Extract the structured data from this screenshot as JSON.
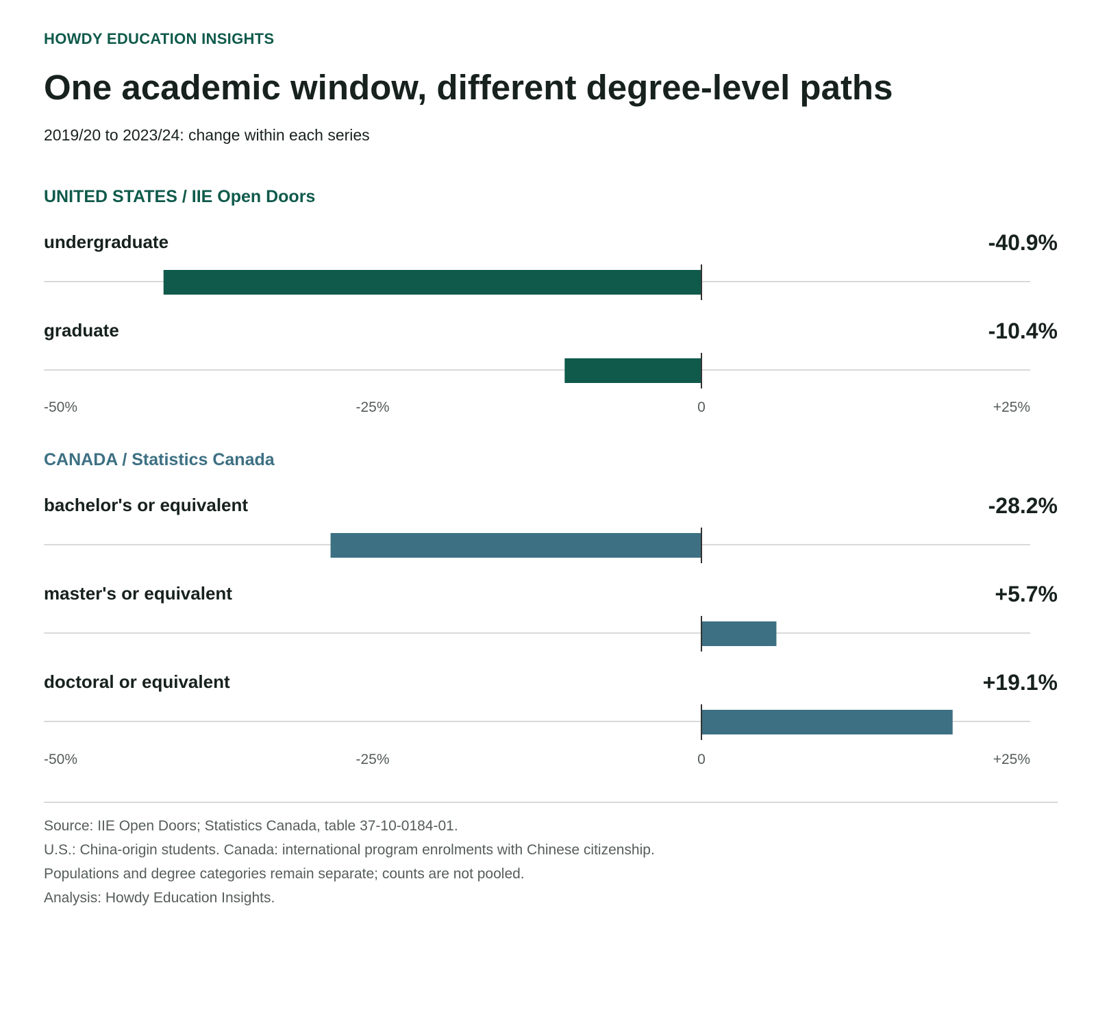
{
  "header": {
    "kicker": "HOWDY EDUCATION INSIGHTS",
    "title": "One academic window, different degree-level paths",
    "subtitle": "2019/20 to 2023/24: change within each series"
  },
  "colors": {
    "us": "#0f5a4b",
    "canada": "#3d7083",
    "baseline": "#d9d9d9",
    "zero_line": "#333333"
  },
  "chart_data": [
    {
      "type": "bar",
      "orientation": "horizontal",
      "section_title": "UNITED STATES / IIE Open Doors",
      "color": "#0f5a4b",
      "categories": [
        "undergraduate",
        "graduate"
      ],
      "values": [
        -40.9,
        -10.4
      ],
      "value_labels": [
        "-40.9%",
        "-10.4%"
      ],
      "xlim": [
        -50,
        25
      ],
      "ticks": [
        "-50%",
        "-25%",
        "0",
        "+25%"
      ],
      "tick_values": [
        -50,
        -25,
        0,
        25
      ],
      "grid": false
    },
    {
      "type": "bar",
      "orientation": "horizontal",
      "section_title": "CANADA / Statistics Canada",
      "color": "#3d7083",
      "categories": [
        "bachelor's or equivalent",
        "master's or equivalent",
        "doctoral or equivalent"
      ],
      "values": [
        -28.2,
        5.7,
        19.1
      ],
      "value_labels": [
        "-28.2%",
        "+5.7%",
        "+19.1%"
      ],
      "xlim": [
        -50,
        25
      ],
      "ticks": [
        "-50%",
        "-25%",
        "0",
        "+25%"
      ],
      "tick_values": [
        -50,
        -25,
        0,
        25
      ],
      "grid": false
    }
  ],
  "footer": {
    "lines": [
      "Source: IIE Open Doors; Statistics Canada, table 37-10-0184-01.",
      "U.S.: China-origin students. Canada: international program enrolments with Chinese citizenship.",
      "Populations and degree categories remain separate; counts are not pooled.",
      "Analysis: Howdy Education Insights."
    ]
  }
}
